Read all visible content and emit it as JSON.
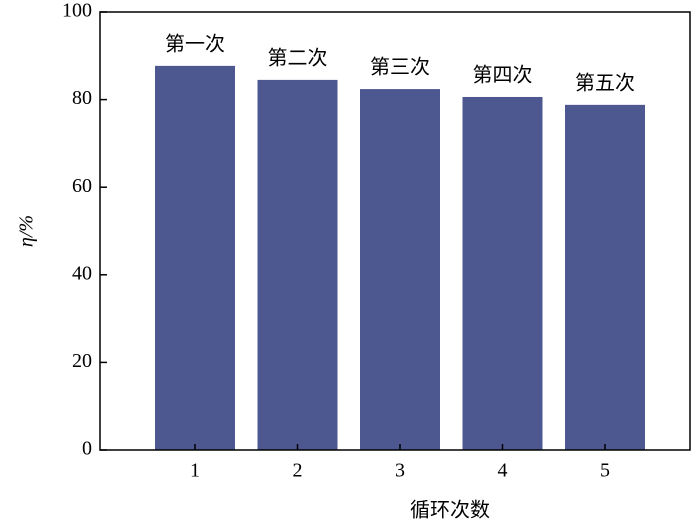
{
  "chart_data": {
    "type": "bar",
    "categories": [
      "1",
      "2",
      "3",
      "4",
      "5"
    ],
    "values": [
      87.7,
      84.5,
      82.4,
      80.6,
      78.8
    ],
    "annotations": [
      "第一次",
      "第二次",
      "第三次",
      "第四次",
      "第五次"
    ],
    "color": "#4d5891",
    "ylim": [
      0,
      100
    ],
    "yticks": [
      0,
      20,
      40,
      60,
      80,
      100
    ],
    "x_label": "循环次数",
    "y_label": "η/%"
  }
}
